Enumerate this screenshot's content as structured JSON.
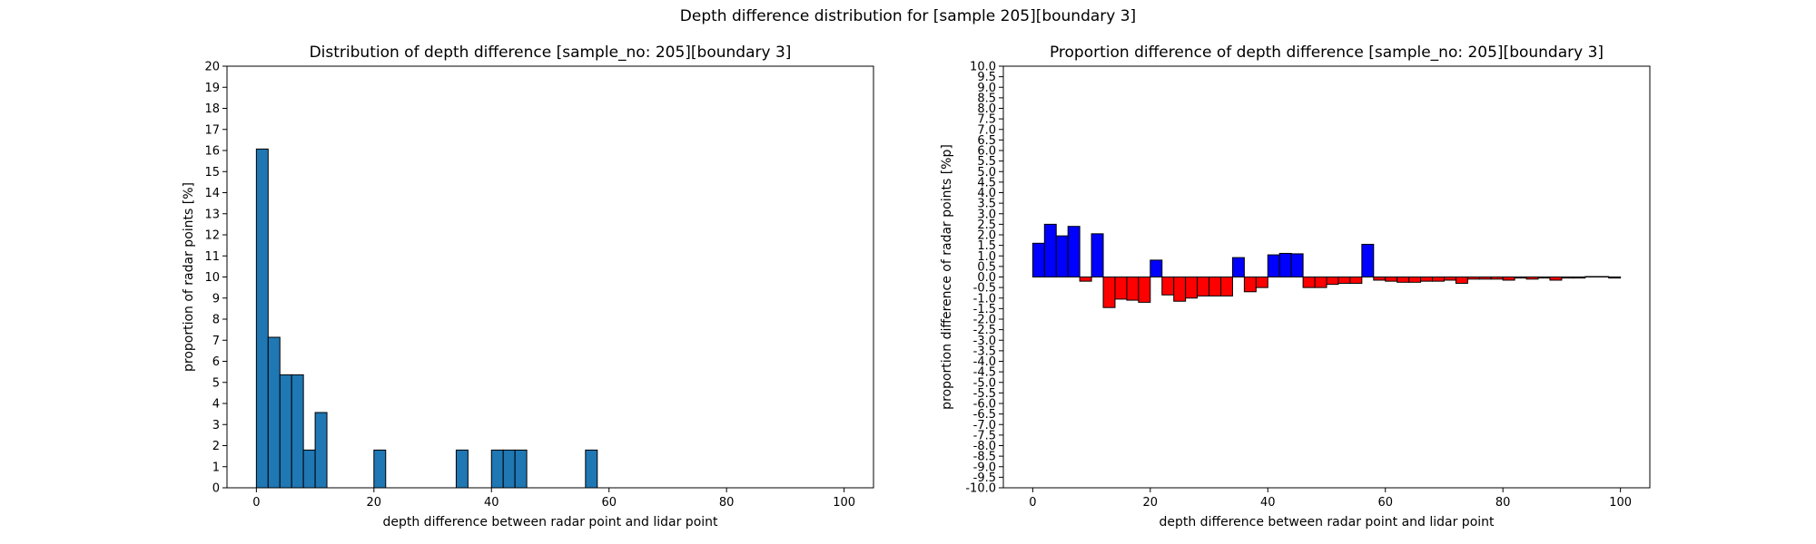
{
  "figure": {
    "suptitle": "Depth difference distribution for [sample 205][boundary 3]"
  },
  "chart_data": [
    {
      "type": "bar",
      "title": "Distribution of depth difference [sample_no: 205][boundary 3]",
      "xlabel": "depth difference between radar point and lidar point",
      "ylabel": "proportion of radar points [%]",
      "xlim": [
        -5,
        105
      ],
      "ylim": [
        0,
        20
      ],
      "xticks": [
        0,
        20,
        40,
        60,
        80,
        100
      ],
      "yticks": [
        0,
        1,
        2,
        3,
        4,
        5,
        6,
        7,
        8,
        9,
        10,
        11,
        12,
        13,
        14,
        15,
        16,
        17,
        18,
        19,
        20
      ],
      "bin_width": 2,
      "bin_starts": [
        0,
        2,
        4,
        6,
        8,
        10,
        12,
        14,
        16,
        18,
        20,
        22,
        24,
        26,
        28,
        30,
        32,
        34,
        36,
        38,
        40,
        42,
        44,
        46,
        48,
        50,
        52,
        54,
        56,
        58,
        60,
        62,
        64,
        66,
        68,
        70,
        72,
        74,
        76,
        78,
        80,
        82,
        84,
        86,
        88,
        90,
        92,
        94,
        96,
        98
      ],
      "values": [
        16.07,
        7.14,
        5.36,
        5.36,
        1.79,
        3.57,
        0,
        0,
        0,
        0,
        1.79,
        0,
        0,
        0,
        0,
        0,
        0,
        1.79,
        0,
        0,
        1.79,
        1.79,
        1.79,
        0,
        0,
        0,
        0,
        0,
        1.79,
        0,
        0,
        0,
        0,
        0,
        0,
        0,
        0,
        0,
        0,
        0,
        0,
        0,
        0,
        0,
        0,
        0,
        0,
        0,
        0,
        0
      ],
      "bar_color": "#1f77b4",
      "edge_color": "#000000"
    },
    {
      "type": "bar",
      "title": "Proportion difference of depth difference [sample_no: 205][boundary 3]",
      "xlabel": "depth difference between radar point and lidar point",
      "ylabel": "proportion difference of radar points [%p]",
      "xlim": [
        -5,
        105
      ],
      "ylim": [
        -10,
        10
      ],
      "xticks": [
        0,
        20,
        40,
        60,
        80,
        100
      ],
      "yticks": [
        "-10.0",
        "-9.5",
        "-9.0",
        "-8.5",
        "-8.0",
        "-7.5",
        "-7.0",
        "-6.5",
        "-6.0",
        "-5.5",
        "-5.0",
        "-4.5",
        "-4.0",
        "-3.5",
        "-3.0",
        "-2.5",
        "-2.0",
        "-1.5",
        "-1.0",
        "-0.5",
        "0.0",
        "0.5",
        "1.0",
        "1.5",
        "2.0",
        "2.5",
        "3.0",
        "3.5",
        "4.0",
        "4.5",
        "5.0",
        "5.5",
        "6.0",
        "6.5",
        "7.0",
        "7.5",
        "8.0",
        "8.5",
        "9.0",
        "9.5",
        "10.0"
      ],
      "bin_width": 2,
      "bin_starts": [
        0,
        2,
        4,
        6,
        8,
        10,
        12,
        14,
        16,
        18,
        20,
        22,
        24,
        26,
        28,
        30,
        32,
        34,
        36,
        38,
        40,
        42,
        44,
        46,
        48,
        50,
        52,
        54,
        56,
        58,
        60,
        62,
        64,
        66,
        68,
        70,
        72,
        74,
        76,
        78,
        80,
        82,
        84,
        86,
        88,
        90,
        92,
        94,
        96,
        98
      ],
      "values": [
        1.6,
        2.5,
        1.95,
        2.4,
        -0.2,
        2.05,
        -1.45,
        -1.05,
        -1.1,
        -1.2,
        0.8,
        -0.85,
        -1.15,
        -1.0,
        -0.9,
        -0.9,
        -0.9,
        0.92,
        -0.7,
        -0.5,
        1.05,
        1.12,
        1.1,
        -0.5,
        -0.5,
        -0.35,
        -0.3,
        -0.3,
        1.55,
        -0.15,
        -0.2,
        -0.25,
        -0.25,
        -0.2,
        -0.2,
        -0.15,
        -0.3,
        -0.1,
        -0.1,
        -0.1,
        -0.15,
        -0.05,
        -0.1,
        -0.05,
        -0.15,
        -0.05,
        -0.05,
        0.02,
        0.02,
        -0.05
      ],
      "positive_color": "#0000ff",
      "negative_color": "#ff0000",
      "edge_color": "#000000"
    }
  ]
}
